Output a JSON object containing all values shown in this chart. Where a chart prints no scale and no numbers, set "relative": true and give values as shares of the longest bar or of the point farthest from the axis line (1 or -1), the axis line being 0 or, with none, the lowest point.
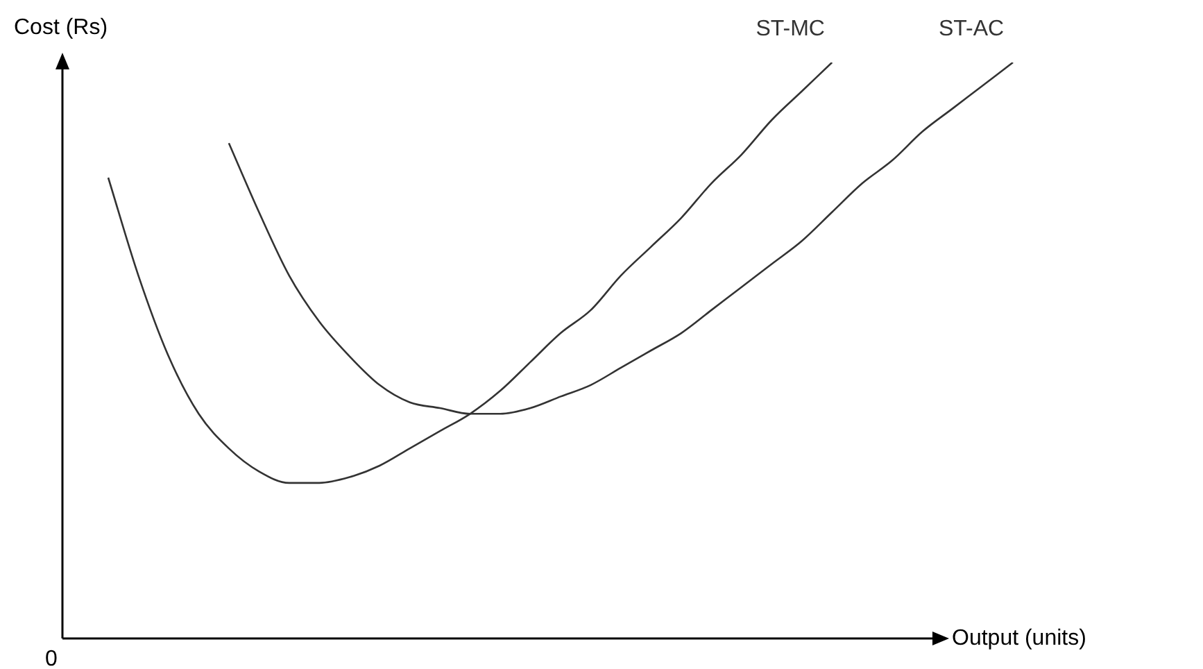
{
  "chart_data": {
    "type": "line",
    "relative": true,
    "xlabel": "Output (units)",
    "ylabel": "Cost (Rs)",
    "annotations": [
      "0"
    ],
    "legend": false,
    "categories": [
      null,
      null,
      null,
      null,
      null,
      null,
      null,
      null,
      null,
      null,
      null,
      null,
      null,
      null,
      null,
      null,
      null,
      null,
      null,
      null,
      null,
      null,
      null,
      null,
      null,
      null,
      null,
      null,
      null,
      null,
      null
    ],
    "series": [
      {
        "name": "ST-MC",
        "color": "#333333",
        "values": [
          0.8,
          0.63,
          0.49,
          0.39,
          0.33,
          0.29,
          0.27,
          0.27,
          0.28,
          0.3,
          0.33,
          0.36,
          0.39,
          0.43,
          0.48,
          0.53,
          0.57,
          0.63,
          0.68,
          0.73,
          0.79,
          0.84,
          0.9,
          0.95,
          1,
          null,
          null,
          null,
          null,
          null,
          null
        ]
      },
      {
        "name": "ST-AC",
        "color": "#333333",
        "values": [
          null,
          null,
          null,
          null,
          0.86,
          0.74,
          0.63,
          0.55,
          0.49,
          0.44,
          0.41,
          0.4,
          0.39,
          0.39,
          0.4,
          0.42,
          0.44,
          0.47,
          0.5,
          0.53,
          0.57,
          0.61,
          0.65,
          0.69,
          0.74,
          0.79,
          0.83,
          0.88,
          0.92,
          0.96,
          1
        ]
      }
    ]
  }
}
